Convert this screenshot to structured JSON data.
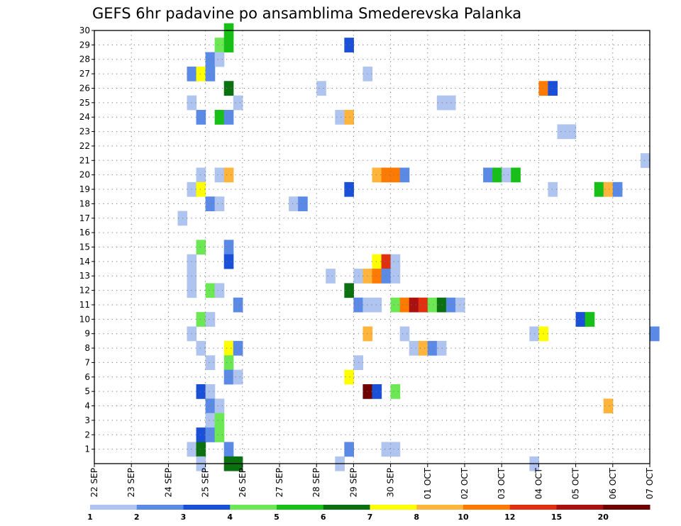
{
  "chart_data": {
    "type": "heatmap",
    "title": "GEFS 6hr padavine po ansamblima Smederevska Palanka",
    "y_ticks": [
      "1",
      "2",
      "3",
      "4",
      "5",
      "6",
      "7",
      "8",
      "9",
      "10",
      "11",
      "12",
      "13",
      "14",
      "15",
      "16",
      "17",
      "18",
      "19",
      "20",
      "21",
      "22",
      "23",
      "24",
      "25",
      "26",
      "27",
      "28",
      "29",
      "30"
    ],
    "x_ticks": [
      "22 SEP",
      "23 SEP",
      "24 SEP",
      "25 SEP",
      "26 SEP",
      "27 SEP",
      "28 SEP",
      "29 SEP",
      "30 SEP",
      "01 OCT",
      "02 OCT",
      "03 OCT",
      "04 OCT",
      "05 OCT",
      "06 OCT",
      "07 OCT"
    ],
    "x_range_days": [
      0,
      15
    ],
    "y_range": [
      0,
      30
    ],
    "grid": true,
    "legend_position": "bottom",
    "colorbar": {
      "labels": [
        "1",
        "2",
        "3",
        "4",
        "5",
        "6",
        "7",
        "8",
        "10",
        "12",
        "15",
        "20"
      ],
      "colors": [
        "#b0c4f0",
        "#5a8ae6",
        "#1a50d8",
        "#6ce855",
        "#17c017",
        "#0a7010",
        "#ffff00",
        "#ffb43c",
        "#ff7a00",
        "#e03010",
        "#aa1010",
        "#6e0000"
      ]
    },
    "cells": [
      [
        3.5,
        30,
        4
      ],
      [
        3.25,
        29,
        3
      ],
      [
        3.5,
        29,
        4
      ],
      [
        6.75,
        29,
        2
      ],
      [
        3.0,
        28,
        1
      ],
      [
        3.25,
        28,
        0
      ],
      [
        2.5,
        27,
        1
      ],
      [
        2.75,
        27,
        6
      ],
      [
        3.0,
        27,
        1
      ],
      [
        7.25,
        27,
        0
      ],
      [
        3.5,
        26,
        5
      ],
      [
        6.0,
        26,
        0
      ],
      [
        12.0,
        26,
        8
      ],
      [
        12.25,
        26,
        2
      ],
      [
        2.5,
        25,
        0
      ],
      [
        3.75,
        25,
        0
      ],
      [
        9.25,
        25,
        0
      ],
      [
        9.5,
        25,
        0
      ],
      [
        2.75,
        24,
        1
      ],
      [
        3.25,
        24,
        4
      ],
      [
        3.5,
        24,
        1
      ],
      [
        6.5,
        24,
        0
      ],
      [
        6.75,
        24,
        7
      ],
      [
        12.5,
        23,
        0
      ],
      [
        12.75,
        23,
        0
      ],
      [
        14.75,
        21,
        0
      ],
      [
        2.75,
        20,
        0
      ],
      [
        3.25,
        20,
        0
      ],
      [
        3.5,
        20,
        7
      ],
      [
        7.5,
        20,
        7
      ],
      [
        7.75,
        20,
        8
      ],
      [
        8.0,
        20,
        8
      ],
      [
        8.25,
        20,
        1
      ],
      [
        10.5,
        20,
        1
      ],
      [
        10.75,
        20,
        4
      ],
      [
        11.0,
        20,
        0
      ],
      [
        11.25,
        20,
        4
      ],
      [
        2.5,
        19,
        0
      ],
      [
        2.75,
        19,
        6
      ],
      [
        6.75,
        19,
        2
      ],
      [
        12.25,
        19,
        0
      ],
      [
        13.5,
        19,
        4
      ],
      [
        13.75,
        19,
        7
      ],
      [
        14.0,
        19,
        1
      ],
      [
        3.0,
        18,
        1
      ],
      [
        3.25,
        18,
        0
      ],
      [
        5.25,
        18,
        0
      ],
      [
        5.5,
        18,
        1
      ],
      [
        2.25,
        17,
        0
      ],
      [
        2.75,
        15,
        3
      ],
      [
        3.5,
        15,
        1
      ],
      [
        2.5,
        14,
        0
      ],
      [
        3.5,
        14,
        2
      ],
      [
        7.5,
        14,
        6
      ],
      [
        7.75,
        14,
        9
      ],
      [
        8.0,
        14,
        0
      ],
      [
        2.5,
        13,
        0
      ],
      [
        6.25,
        13,
        0
      ],
      [
        7.0,
        13,
        0
      ],
      [
        7.25,
        13,
        7
      ],
      [
        7.5,
        13,
        8
      ],
      [
        7.75,
        13,
        1
      ],
      [
        8.0,
        13,
        0
      ],
      [
        2.5,
        12,
        0
      ],
      [
        3.0,
        12,
        3
      ],
      [
        3.25,
        12,
        0
      ],
      [
        6.75,
        12,
        5
      ],
      [
        3.75,
        11,
        1
      ],
      [
        7.0,
        11,
        1
      ],
      [
        7.25,
        11,
        0
      ],
      [
        7.5,
        11,
        0
      ],
      [
        8.0,
        11,
        3
      ],
      [
        8.25,
        11,
        8
      ],
      [
        8.5,
        11,
        10
      ],
      [
        8.75,
        11,
        9
      ],
      [
        9.0,
        11,
        3
      ],
      [
        9.25,
        11,
        5
      ],
      [
        9.5,
        11,
        1
      ],
      [
        9.75,
        11,
        0
      ],
      [
        2.75,
        10,
        3
      ],
      [
        3.0,
        10,
        0
      ],
      [
        13.0,
        10,
        2
      ],
      [
        13.25,
        10,
        4
      ],
      [
        2.5,
        9,
        0
      ],
      [
        7.25,
        9,
        7
      ],
      [
        8.25,
        9,
        0
      ],
      [
        11.75,
        9,
        0
      ],
      [
        12.0,
        9,
        6
      ],
      [
        15.0,
        9,
        1
      ],
      [
        2.75,
        8,
        0
      ],
      [
        3.5,
        8,
        6
      ],
      [
        3.75,
        8,
        1
      ],
      [
        8.5,
        8,
        0
      ],
      [
        8.75,
        8,
        7
      ],
      [
        9.0,
        8,
        1
      ],
      [
        9.25,
        8,
        0
      ],
      [
        3.0,
        7,
        0
      ],
      [
        3.5,
        7,
        3
      ],
      [
        7.0,
        7,
        0
      ],
      [
        3.5,
        6,
        1
      ],
      [
        3.75,
        6,
        0
      ],
      [
        6.75,
        6,
        6
      ],
      [
        2.75,
        5,
        2
      ],
      [
        3.0,
        5,
        0
      ],
      [
        7.25,
        5,
        11
      ],
      [
        7.5,
        5,
        2
      ],
      [
        8.0,
        5,
        3
      ],
      [
        3.0,
        4,
        1
      ],
      [
        3.25,
        4,
        0
      ],
      [
        13.75,
        4,
        7
      ],
      [
        3.0,
        3,
        0
      ],
      [
        3.25,
        3,
        3
      ],
      [
        2.75,
        2,
        2
      ],
      [
        3.0,
        2,
        1
      ],
      [
        3.25,
        2,
        3
      ],
      [
        2.5,
        1,
        0
      ],
      [
        2.75,
        1,
        5
      ],
      [
        3.5,
        1,
        1
      ],
      [
        6.75,
        1,
        1
      ],
      [
        7.75,
        1,
        0
      ],
      [
        8.0,
        1,
        0
      ],
      [
        2.75,
        0,
        0
      ],
      [
        3.5,
        0,
        5
      ],
      [
        3.75,
        0,
        5
      ],
      [
        6.5,
        0,
        0
      ],
      [
        11.75,
        0,
        0
      ]
    ]
  }
}
